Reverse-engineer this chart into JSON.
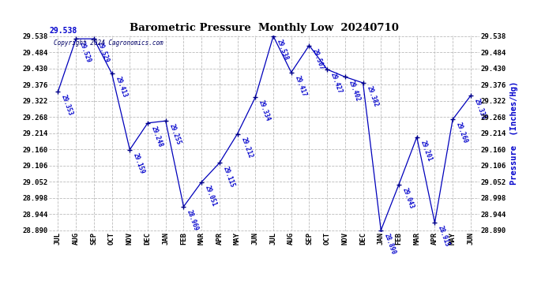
{
  "title": "Barometric Pressure  Monthly Low  20240710",
  "ylabel": "Pressure  (Inches/Hg)",
  "copyright": "Copyright 2024 Cagronomics.com",
  "months": [
    "JUL",
    "AUG",
    "SEP",
    "OCT",
    "NOV",
    "DEC",
    "JAN",
    "FEB",
    "MAR",
    "APR",
    "MAY",
    "JUN",
    "JUL",
    "AUG",
    "SEP",
    "OCT",
    "NOV",
    "DEC",
    "JAN",
    "FEB",
    "MAR",
    "APR",
    "MAY",
    "JUN"
  ],
  "values": [
    29.353,
    29.529,
    29.529,
    29.413,
    29.159,
    29.248,
    29.255,
    28.969,
    29.051,
    29.115,
    29.212,
    29.334,
    29.538,
    29.417,
    29.507,
    29.427,
    29.402,
    29.382,
    28.89,
    29.043,
    29.201,
    28.915,
    29.26,
    29.339
  ],
  "ylim_min": 28.89,
  "ylim_max": 29.538,
  "line_color": "#0000bb",
  "marker_color": "#000088",
  "title_color": "#000000",
  "ylabel_color": "#0000cc",
  "copyright_color": "#000066",
  "label_color": "#0000cc",
  "background_color": "#ffffff",
  "grid_color": "#bbbbbb",
  "yticks": [
    28.89,
    28.944,
    28.998,
    29.052,
    29.106,
    29.16,
    29.214,
    29.268,
    29.322,
    29.376,
    29.43,
    29.484,
    29.538
  ]
}
